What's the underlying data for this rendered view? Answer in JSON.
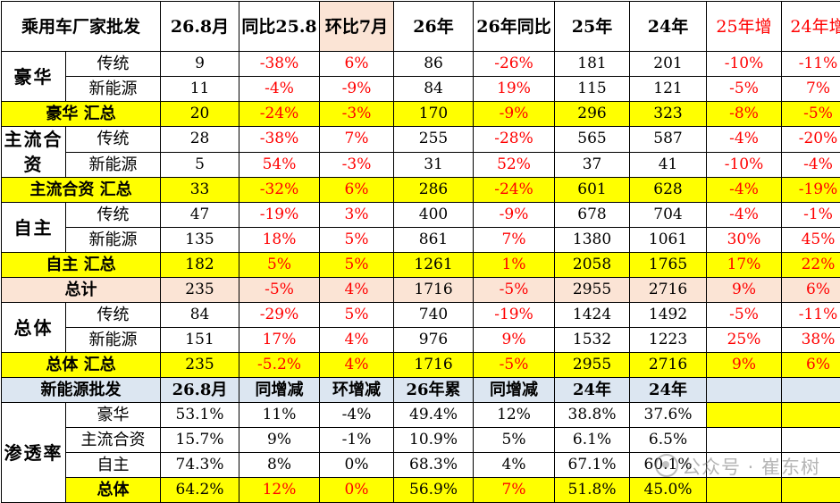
{
  "header": {
    "c0": "乘用车厂家批发",
    "c1": "26.8月",
    "c2": "同比25.8",
    "c3": "环比7月",
    "c4": "26年",
    "c5": "26年同比",
    "c6": "25年",
    "c7": "24年",
    "c8": "25年增",
    "c9": "24年增"
  },
  "groups": {
    "lux": "豪华",
    "jv": "主流合资",
    "own": "自主",
    "all": "总体"
  },
  "sub": {
    "trad": "传统",
    "nev": "新能源"
  },
  "rows": {
    "lux_trad": [
      "9",
      "-38%",
      "6%",
      "86",
      "-26%",
      "181",
      "201",
      "-10%",
      "-11%"
    ],
    "lux_nev": [
      "11",
      "-4%",
      "-9%",
      "84",
      "19%",
      "115",
      "121",
      "-5%",
      "7%"
    ],
    "lux_sum_label": "豪华 汇总",
    "lux_sum": [
      "20",
      "-24%",
      "-3%",
      "170",
      "-9%",
      "296",
      "323",
      "-8%",
      "-5%"
    ],
    "jv_trad": [
      "28",
      "-38%",
      "7%",
      "255",
      "-28%",
      "565",
      "587",
      "-4%",
      "-20%"
    ],
    "jv_nev": [
      "5",
      "54%",
      "-3%",
      "31",
      "52%",
      "37",
      "41",
      "-10%",
      "-4%"
    ],
    "jv_sum_label": "主流合资 汇总",
    "jv_sum": [
      "33",
      "-32%",
      "6%",
      "286",
      "-24%",
      "601",
      "628",
      "-4%",
      "-19%"
    ],
    "own_trad": [
      "47",
      "-19%",
      "3%",
      "400",
      "-9%",
      "678",
      "704",
      "-4%",
      "-1%"
    ],
    "own_nev": [
      "135",
      "18%",
      "5%",
      "861",
      "7%",
      "1380",
      "1061",
      "30%",
      "45%"
    ],
    "own_sum_label": "自主 汇总",
    "own_sum": [
      "182",
      "5%",
      "5%",
      "1261",
      "1%",
      "2058",
      "1765",
      "17%",
      "22%"
    ],
    "total_label": "总计",
    "total": [
      "235",
      "-5%",
      "4%",
      "1716",
      "-5%",
      "2955",
      "2716",
      "9%",
      "6%"
    ],
    "all_trad": [
      "84",
      "-29%",
      "5%",
      "740",
      "-19%",
      "1424",
      "1492",
      "-5%",
      "-11%"
    ],
    "all_nev": [
      "151",
      "17%",
      "4%",
      "976",
      "9%",
      "1532",
      "1223",
      "25%",
      "38%"
    ],
    "all_sum_label": "总体 汇总",
    "all_sum": [
      "235",
      "-5.2%",
      "4%",
      "1716",
      "-5%",
      "2955",
      "2716",
      "9%",
      "6%"
    ]
  },
  "nev_header": {
    "c0": "新能源批发",
    "c1": "26.8月",
    "c2": "同增减",
    "c3": "环增减",
    "c4": "26年累",
    "c5": "同增减",
    "c6": "24年",
    "c7": "24年"
  },
  "penetration": {
    "label": "渗透率",
    "rows": [
      {
        "name": "豪华",
        "values": [
          "53.1%",
          "11%",
          "-4%",
          "49.4%",
          "12%",
          "38.8%",
          "37.6%"
        ]
      },
      {
        "name": "主流合资",
        "values": [
          "15.7%",
          "9%",
          "-1%",
          "10.9%",
          "5%",
          "6.1%",
          "6.5%"
        ]
      },
      {
        "name": "自主",
        "values": [
          "74.3%",
          "8%",
          "0%",
          "68.3%",
          "4%",
          "67.1%",
          "60.1%"
        ]
      },
      {
        "name": "总体",
        "values": [
          "64.2%",
          "12%",
          "0%",
          "56.9%",
          "7%",
          "51.8%",
          "45.0%"
        ]
      }
    ]
  },
  "watermark": "公众号 · 崔东树",
  "colors": {
    "highlight": "#ffff00",
    "total_row": "#fbe4d5",
    "header_bg": "#dce6f1",
    "negative_red": "#ff0000"
  }
}
